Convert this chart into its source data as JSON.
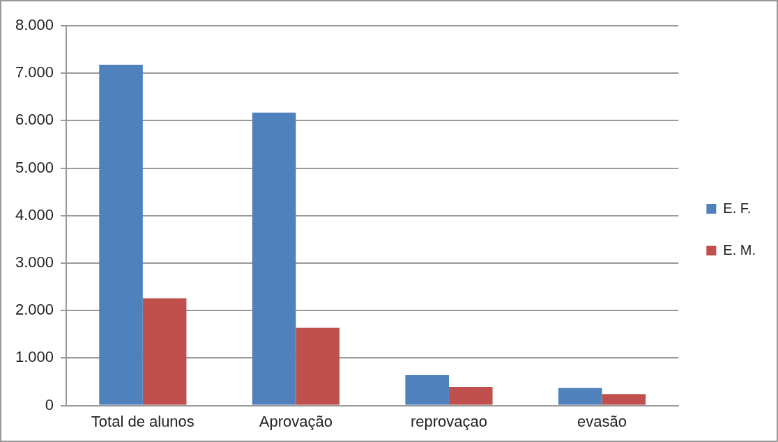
{
  "chart_data": {
    "type": "bar",
    "categories": [
      "Total de alunos",
      "Aprovação",
      "reprovaçao",
      "evasão"
    ],
    "series": [
      {
        "name": "E. F.",
        "color": "#4f81bd",
        "values": [
          7180,
          6170,
          640,
          370
        ]
      },
      {
        "name": "E. M.",
        "color": "#c0504d",
        "values": [
          2260,
          1640,
          390,
          240
        ]
      }
    ],
    "ylim": [
      0,
      8000
    ],
    "yticks": [
      0,
      {
        "value": 1000,
        "label": "1.000"
      },
      {
        "value": 2000,
        "label": "2.000"
      },
      {
        "value": 3000,
        "label": "3.000"
      },
      {
        "value": 4000,
        "label": "4.000"
      },
      {
        "value": 5000,
        "label": "5.000"
      },
      {
        "value": 6000,
        "label": "6.000"
      },
      {
        "value": 7000,
        "label": "7.000"
      },
      {
        "value": 8000,
        "label": "8.000"
      }
    ],
    "grid": "y",
    "legend": "right"
  }
}
